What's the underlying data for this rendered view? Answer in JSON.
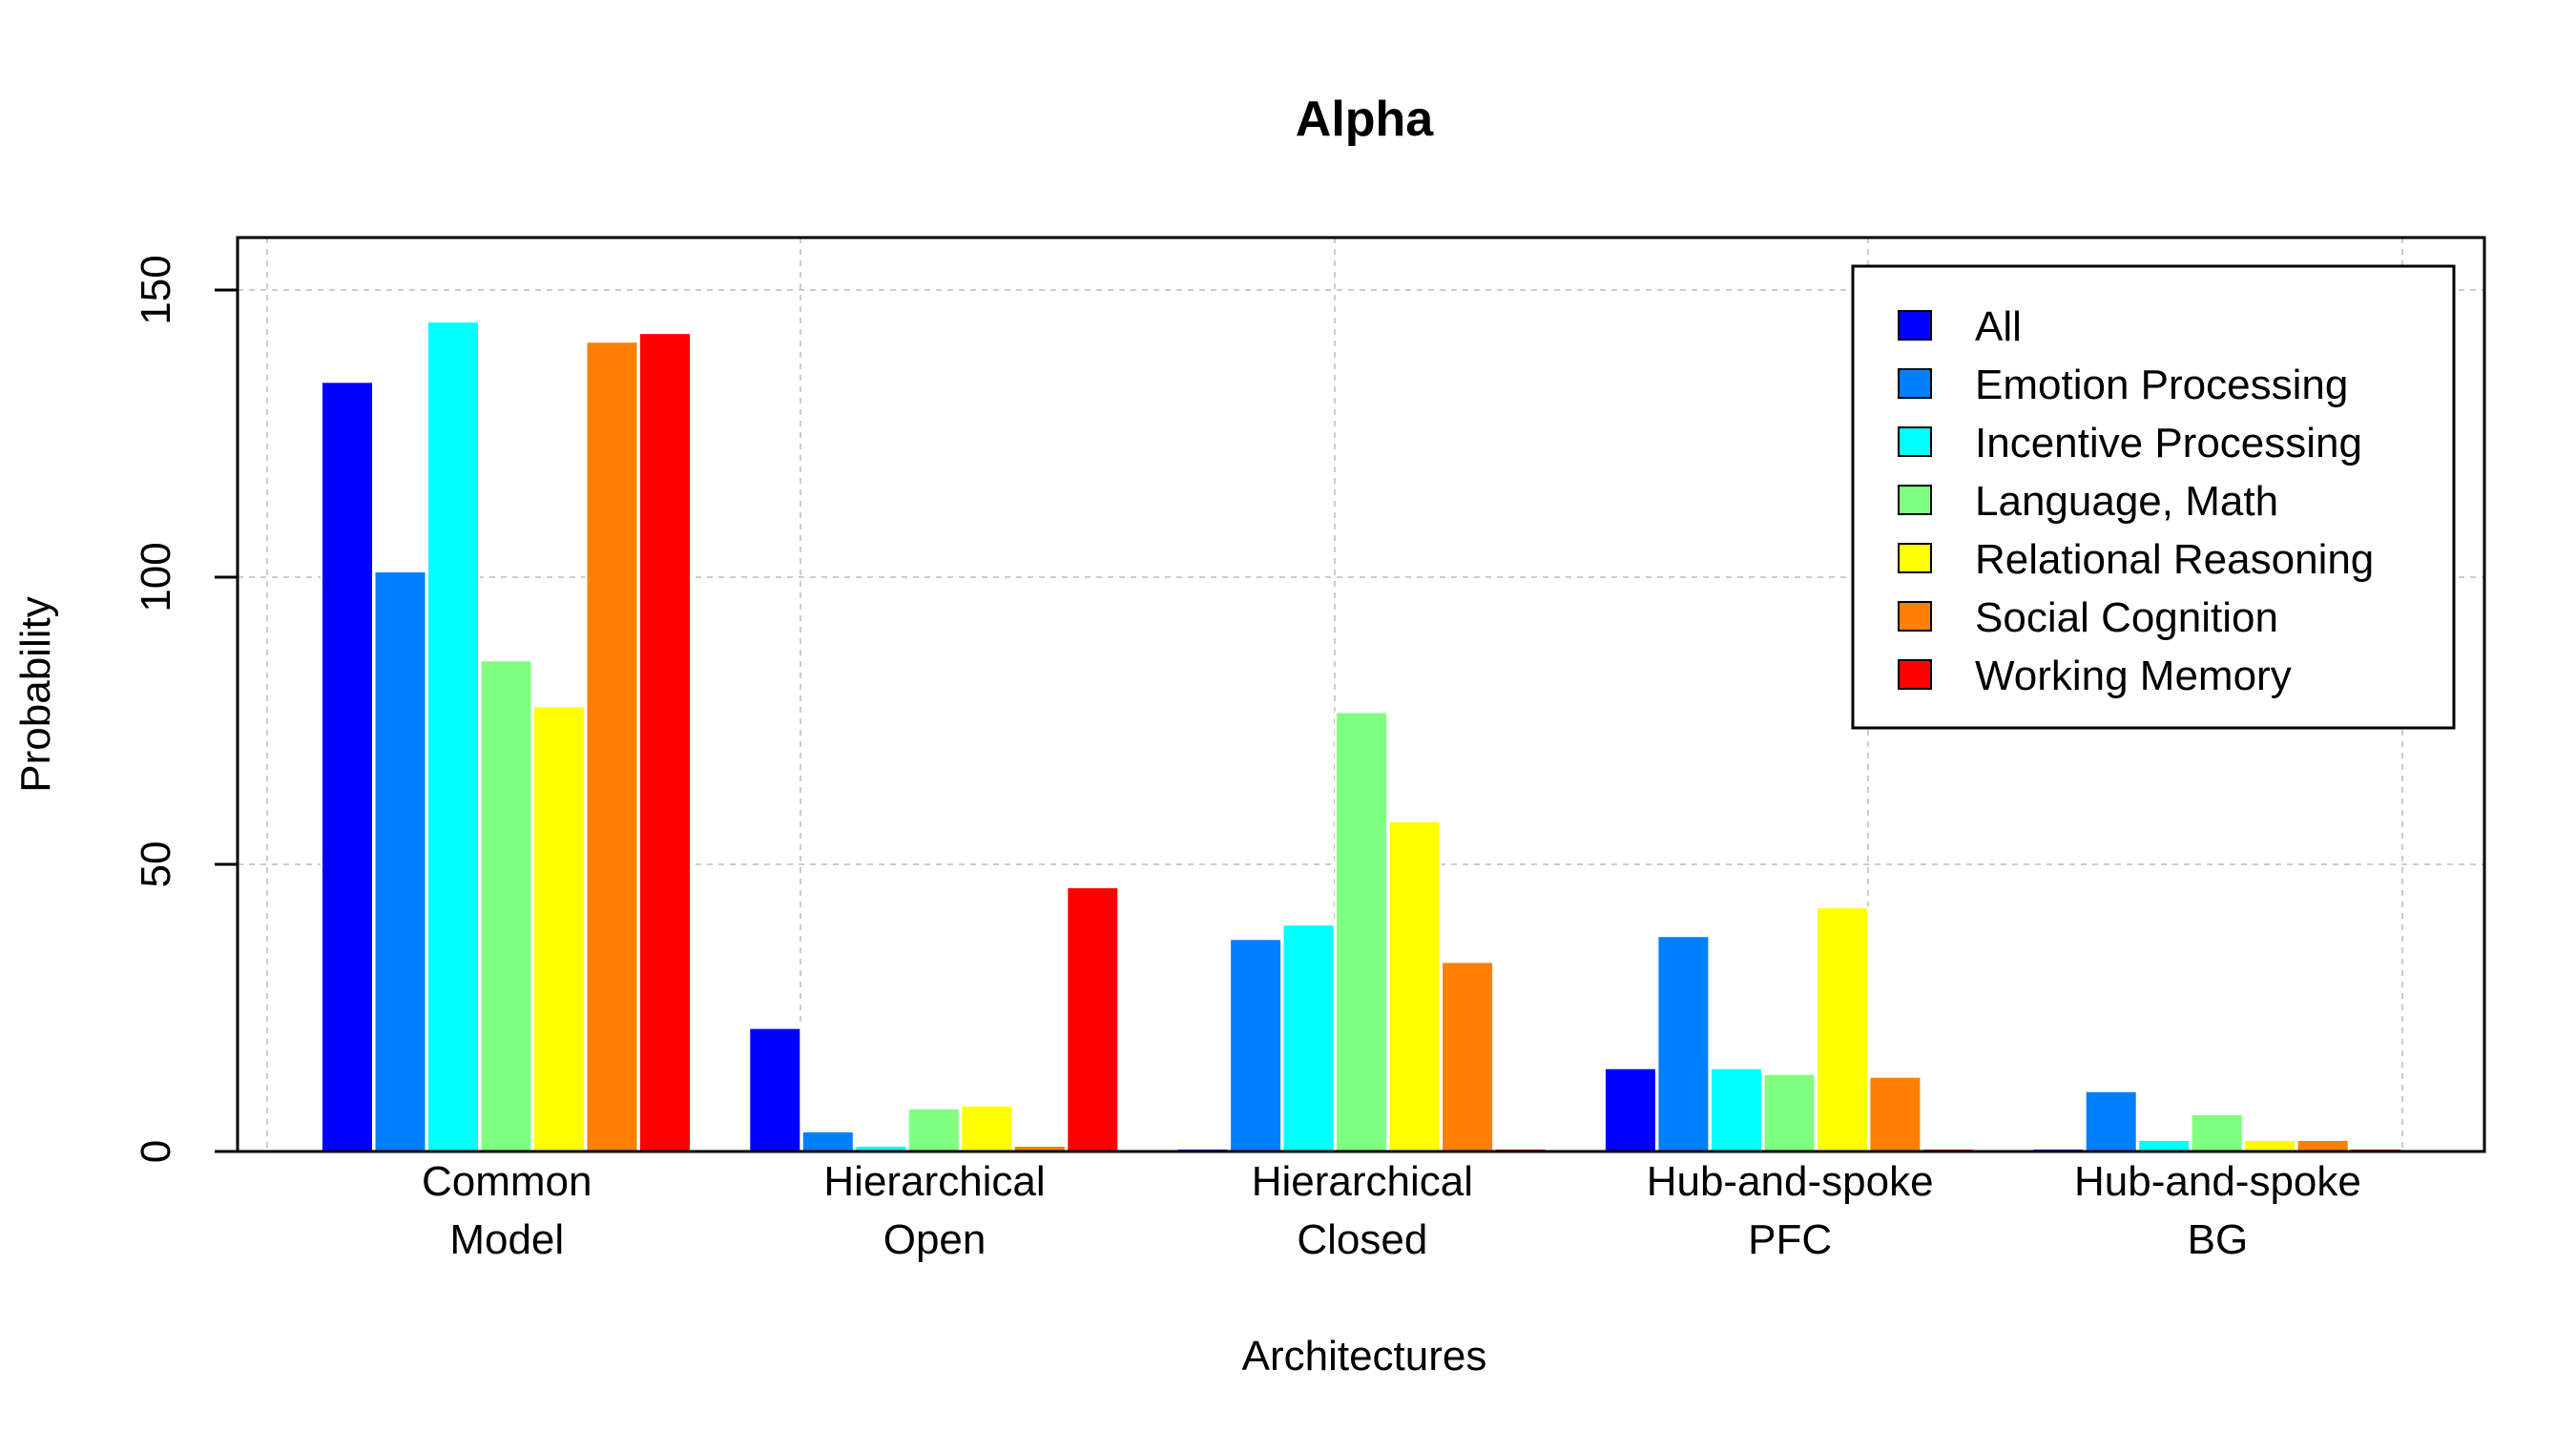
{
  "chart_data": {
    "type": "bar",
    "title": "Alpha",
    "xlabel": "Architectures",
    "ylabel": "Probability",
    "ylim": [
      0,
      160
    ],
    "yticks": [
      0,
      50,
      100,
      150
    ],
    "grid": true,
    "legend_position": "top-right",
    "categories": [
      [
        "Common",
        "Model"
      ],
      [
        "Hierarchical",
        "Open"
      ],
      [
        "Hierarchical",
        "Closed"
      ],
      [
        "Hub-and-spoke",
        "PFC"
      ],
      [
        "Hub-and-spoke",
        "BG"
      ]
    ],
    "series": [
      {
        "name": "All",
        "color": "#0000FF",
        "values": [
          134,
          21.5,
          0.5,
          14.5,
          0.5
        ]
      },
      {
        "name": "Emotion Processing",
        "color": "#0080FF",
        "values": [
          101,
          3.5,
          37,
          37.5,
          10.5
        ]
      },
      {
        "name": "Incentive Processing",
        "color": "#00FFFF",
        "values": [
          144.5,
          1,
          39.5,
          14.5,
          2
        ]
      },
      {
        "name": "Language, Math",
        "color": "#80FF80",
        "values": [
          85.5,
          7.5,
          76.5,
          13.5,
          6.5
        ]
      },
      {
        "name": "Relational Reasoning",
        "color": "#FFFF00",
        "values": [
          77.5,
          8,
          57.5,
          42.5,
          2
        ]
      },
      {
        "name": "Social Cognition",
        "color": "#FF8000",
        "values": [
          141,
          1,
          33,
          13,
          2
        ]
      },
      {
        "name": "Working Memory",
        "color": "#FF0000",
        "values": [
          142.5,
          46,
          0.5,
          0.5,
          0.5
        ]
      }
    ]
  }
}
